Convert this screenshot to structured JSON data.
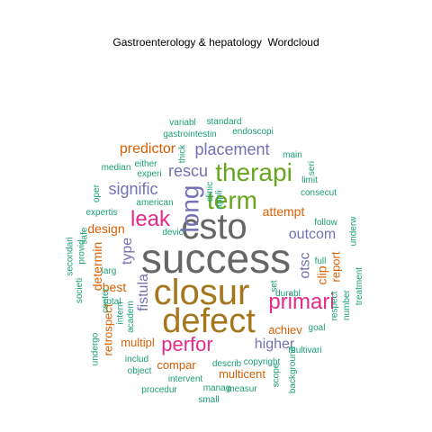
{
  "title": "Gastroenterology & hepatology  Wordcloud",
  "colors": {
    "grey": "#666666",
    "olive": "#a6761d",
    "pink": "#e7298a",
    "green": "#66a61e",
    "purple": "#7570b3",
    "orange": "#d95f02",
    "teal": "#1b9e77",
    "gold": "#e6ab02"
  },
  "words": [
    {
      "text": "success",
      "color": "grey"
    },
    {
      "text": "csto",
      "color": "grey"
    },
    {
      "text": "closur",
      "color": "olive"
    },
    {
      "text": "defect",
      "color": "olive"
    },
    {
      "text": "therapi",
      "color": "green"
    },
    {
      "text": "term",
      "color": "green"
    },
    {
      "text": "long",
      "color": "purple"
    },
    {
      "text": "leak",
      "color": "pink"
    },
    {
      "text": "primari",
      "color": "pink"
    },
    {
      "text": "perfor",
      "color": "pink"
    },
    {
      "text": "placement",
      "color": "purple"
    },
    {
      "text": "rescu",
      "color": "purple"
    },
    {
      "text": "signific",
      "color": "purple"
    },
    {
      "text": "predictor",
      "color": "orange"
    },
    {
      "text": "outcom",
      "color": "purple"
    },
    {
      "text": "higher",
      "color": "purple"
    },
    {
      "text": "fistula",
      "color": "purple"
    },
    {
      "text": "type",
      "color": "purple"
    },
    {
      "text": "otsc",
      "color": "purple"
    },
    {
      "text": "design",
      "color": "orange"
    },
    {
      "text": "attempt",
      "color": "orange"
    },
    {
      "text": "determin",
      "color": "orange"
    },
    {
      "text": "best",
      "color": "orange"
    },
    {
      "text": "clip",
      "color": "orange"
    },
    {
      "text": "report",
      "color": "orange"
    },
    {
      "text": "achiev",
      "color": "orange"
    },
    {
      "text": "compar",
      "color": "orange"
    },
    {
      "text": "multicent",
      "color": "orange"
    },
    {
      "text": "multipl",
      "color": "orange"
    },
    {
      "text": "retrospect",
      "color": "orange"
    },
    {
      "text": "variabl",
      "color": "teal"
    },
    {
      "text": "standard",
      "color": "teal"
    },
    {
      "text": "gastrointestin",
      "color": "teal"
    },
    {
      "text": "endoscopi",
      "color": "teal"
    },
    {
      "text": "thick",
      "color": "teal"
    },
    {
      "text": "main",
      "color": "teal"
    },
    {
      "text": "seri",
      "color": "teal"
    },
    {
      "text": "limit",
      "color": "teal"
    },
    {
      "text": "median",
      "color": "teal"
    },
    {
      "text": "either",
      "color": "teal"
    },
    {
      "text": "experi",
      "color": "teal"
    },
    {
      "text": "oper",
      "color": "teal"
    },
    {
      "text": "clinic",
      "color": "teal"
    },
    {
      "text": "appli",
      "color": "teal"
    },
    {
      "text": "consecut",
      "color": "teal"
    },
    {
      "text": "expertis",
      "color": "teal"
    },
    {
      "text": "american",
      "color": "teal"
    },
    {
      "text": "follow",
      "color": "teal"
    },
    {
      "text": "underw",
      "color": "teal"
    },
    {
      "text": "devic",
      "color": "teal"
    },
    {
      "text": "provid",
      "color": "teal"
    },
    {
      "text": "safe",
      "color": "teal"
    },
    {
      "text": "secondari",
      "color": "teal"
    },
    {
      "text": "larg",
      "color": "teal"
    },
    {
      "text": "full",
      "color": "teal"
    },
    {
      "text": "societi",
      "color": "teal"
    },
    {
      "text": "center",
      "color": "teal"
    },
    {
      "text": "total",
      "color": "teal"
    },
    {
      "text": "set",
      "color": "teal"
    },
    {
      "text": "durabl",
      "color": "teal"
    },
    {
      "text": "respect",
      "color": "teal"
    },
    {
      "text": "number",
      "color": "teal"
    },
    {
      "text": "treatment",
      "color": "teal"
    },
    {
      "text": "intern",
      "color": "teal"
    },
    {
      "text": "academ",
      "color": "teal"
    },
    {
      "text": "goal",
      "color": "teal"
    },
    {
      "text": "undergo",
      "color": "teal"
    },
    {
      "text": "includ",
      "color": "teal"
    },
    {
      "text": "object",
      "color": "teal"
    },
    {
      "text": "describ",
      "color": "teal"
    },
    {
      "text": "multivari",
      "color": "teal"
    },
    {
      "text": "intervent",
      "color": "teal"
    },
    {
      "text": "copyright",
      "color": "teal"
    },
    {
      "text": "background",
      "color": "teal"
    },
    {
      "text": "scope",
      "color": "teal"
    },
    {
      "text": "procedur",
      "color": "teal"
    },
    {
      "text": "manag",
      "color": "teal"
    },
    {
      "text": "measur",
      "color": "teal"
    },
    {
      "text": "small",
      "color": "teal"
    }
  ]
}
